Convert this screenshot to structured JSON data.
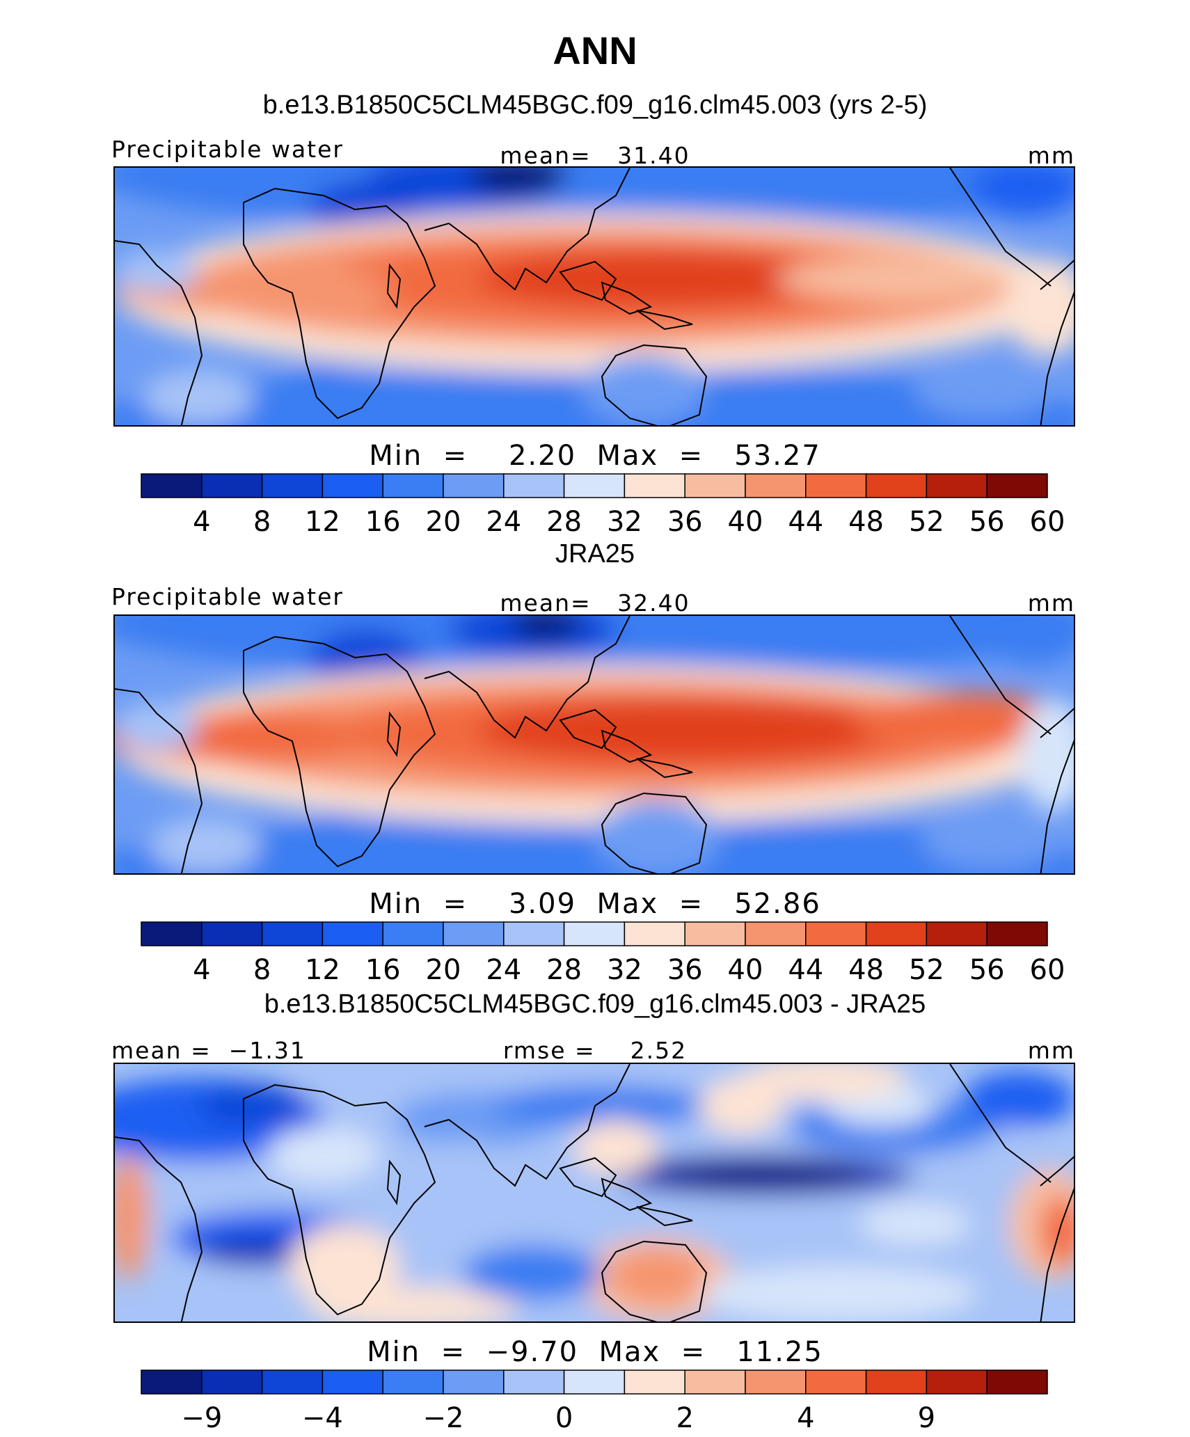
{
  "figure": {
    "title": "ANN",
    "colors": [
      "#0a1a7a",
      "#0a2fb5",
      "#0f46d8",
      "#1a5ef2",
      "#3b7df2",
      "#6c9cf4",
      "#a7c3f7",
      "#d7e5fa",
      "#fde3d3",
      "#f8bda0",
      "#f59570",
      "#f26b40",
      "#e1411b",
      "#b4200c",
      "#7e0a06"
    ]
  },
  "chart_data": [
    {
      "type": "heatmap",
      "title": "b.e13.B1850C5CLM45BGC.f09_g16.clm45.003 (yrs 2-5)",
      "variable": "Precipitable water",
      "stat_left": "",
      "stat_center": "mean=   31.40",
      "units": "mm",
      "min_max": "Min  =    2.20  Max  =   53.27",
      "min": 2.2,
      "max": 53.27,
      "mean": 31.4,
      "colorbar_ticks": [
        "4",
        "8",
        "12",
        "16",
        "20",
        "24",
        "28",
        "32",
        "36",
        "40",
        "44",
        "48",
        "52",
        "56",
        "60"
      ]
    },
    {
      "type": "heatmap",
      "title": "JRA25",
      "variable": "Precipitable water",
      "stat_left": "",
      "stat_center": "mean=   32.40",
      "units": "mm",
      "min_max": "Min  =    3.09  Max  =   52.86",
      "min": 3.09,
      "max": 52.86,
      "mean": 32.4,
      "colorbar_ticks": [
        "4",
        "8",
        "12",
        "16",
        "20",
        "24",
        "28",
        "32",
        "36",
        "40",
        "44",
        "48",
        "52",
        "56",
        "60"
      ]
    },
    {
      "type": "heatmap",
      "title": "b.e13.B1850C5CLM45BGC.f09_g16.clm45.003 - JRA25",
      "variable": "",
      "stat_left": "mean =  −1.31",
      "stat_center": "rmse =    2.52",
      "units": "mm",
      "min_max": "Min  =  −9.70  Max  =   11.25",
      "min": -9.7,
      "max": 11.25,
      "mean": -1.31,
      "rmse": 2.52,
      "colorbar_ticks": [
        "−9",
        "",
        "−4",
        "",
        "−2",
        "",
        "0",
        "",
        "2",
        "",
        "4",
        "",
        "9",
        ""
      ]
    }
  ]
}
